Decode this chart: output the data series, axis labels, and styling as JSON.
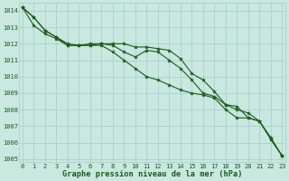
{
  "title": "Graphe pression niveau de la mer (hPa)",
  "background_color": "#c8e8e0",
  "grid_color": "#a8cccc",
  "line_color": "#1a5c1a",
  "xlim": [
    -0.3,
    23.3
  ],
  "ylim": [
    1004.8,
    1014.5
  ],
  "yticks": [
    1005,
    1006,
    1007,
    1008,
    1009,
    1010,
    1011,
    1012,
    1013,
    1014
  ],
  "xtick_labels": [
    "0",
    "1",
    "2",
    "3",
    "4",
    "5",
    "6",
    "7",
    "8",
    "9",
    "10",
    "11",
    "12",
    "13",
    "14",
    "15",
    "16",
    "17",
    "18",
    "19",
    "20",
    "21",
    "22",
    "23"
  ],
  "series": [
    [
      1014.2,
      1013.6,
      1012.8,
      1012.4,
      1011.9,
      1011.9,
      1011.9,
      1012.0,
      1011.9,
      1011.5,
      1011.2,
      1011.6,
      1011.5,
      1011.0,
      1010.5,
      1009.8,
      1009.0,
      1008.8,
      1008.3,
      1008.2,
      1007.5,
      1007.3,
      1006.3,
      1005.2
    ],
    [
      1014.2,
      1013.6,
      1012.8,
      1012.4,
      1012.0,
      1011.9,
      1012.0,
      1012.0,
      1012.0,
      1012.0,
      1011.8,
      1011.8,
      1011.7,
      1011.6,
      1011.1,
      1010.2,
      1009.8,
      1009.1,
      1008.3,
      1008.0,
      1007.8,
      1007.3,
      1006.2,
      1005.2
    ],
    [
      1014.2,
      1013.1,
      1012.6,
      1012.3,
      1011.9,
      1011.9,
      1011.9,
      1011.9,
      1011.5,
      1011.0,
      1010.5,
      1010.0,
      1009.8,
      1009.5,
      1009.2,
      1009.0,
      1008.9,
      1008.7,
      1008.0,
      1007.5,
      1007.5,
      1007.3,
      1006.2,
      1005.2
    ]
  ],
  "marker_size": 3.0,
  "line_width": 0.8,
  "tick_fontsize": 5.0,
  "title_fontsize": 6.2,
  "label_color": "#1a5c1a"
}
